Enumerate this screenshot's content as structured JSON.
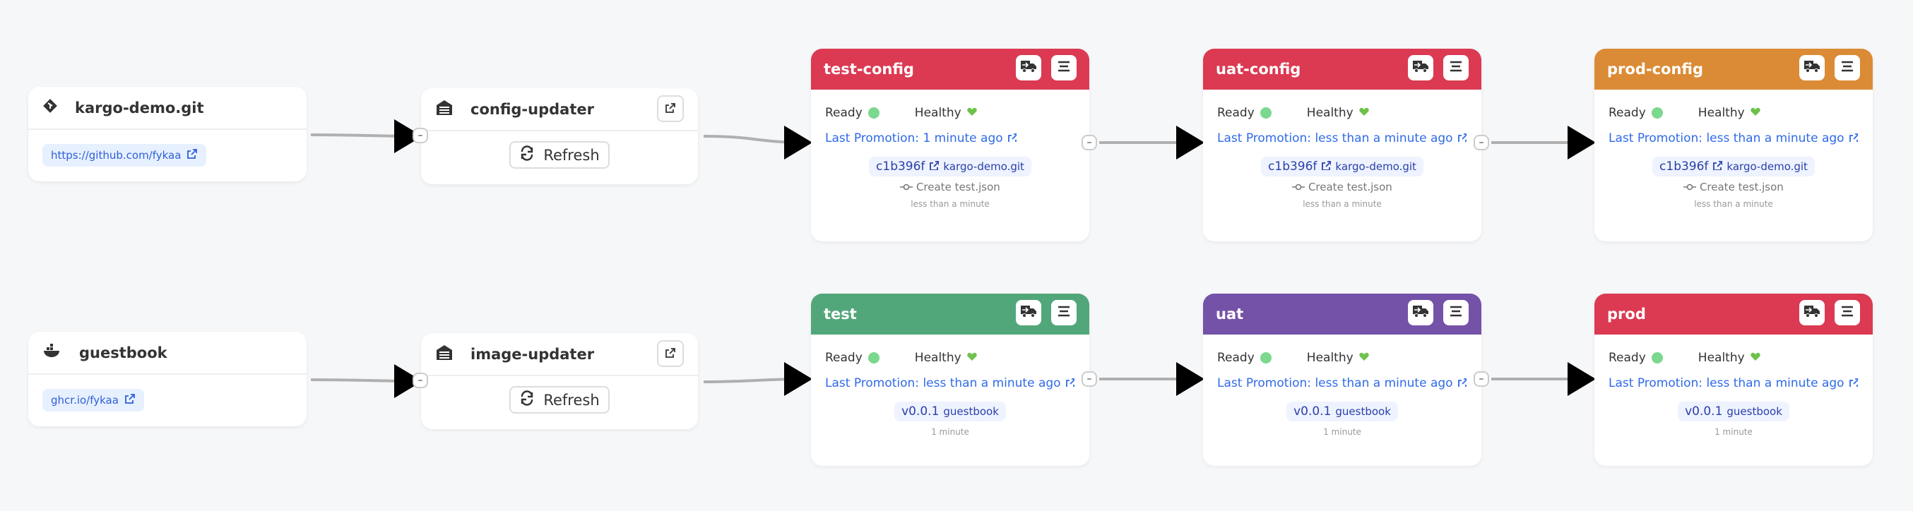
{
  "colors": {
    "red": "#db3a52",
    "green": "#52a77a",
    "purple": "#7452a8",
    "orange": "#db8b35",
    "link": "#2f6ae8",
    "ready": "#7bd88f",
    "healthy": "#6cc24a"
  },
  "sources": [
    {
      "name": "kargo-demo.git",
      "icon": "git-icon",
      "url": "https://github.com/fykaa"
    },
    {
      "name": "guestbook",
      "icon": "docker-icon",
      "url": "ghcr.io/fykaa"
    }
  ],
  "warehouses": [
    {
      "name": "config-updater",
      "refresh_label": "Refresh"
    },
    {
      "name": "image-updater",
      "refresh_label": "Refresh"
    }
  ],
  "stages": [
    {
      "name": "test-config",
      "color": "#db3a52",
      "ready": "Ready",
      "healthy": "Healthy",
      "promotion": "Last Promotion: 1 minute ago",
      "freight": "c1b396f",
      "repo": "kargo-demo.git",
      "message": "Create test.json",
      "time": "less than a minute"
    },
    {
      "name": "uat-config",
      "color": "#db3a52",
      "ready": "Ready",
      "healthy": "Healthy",
      "promotion": "Last Promotion: less than a minute ago",
      "freight": "c1b396f",
      "repo": "kargo-demo.git",
      "message": "Create test.json",
      "time": "less than a minute"
    },
    {
      "name": "prod-config",
      "color": "#db8b35",
      "ready": "Ready",
      "healthy": "Healthy",
      "promotion": "Last Promotion: less than a minute ago",
      "freight": "c1b396f",
      "repo": "kargo-demo.git",
      "message": "Create test.json",
      "time": "less than a minute"
    },
    {
      "name": "test",
      "color": "#52a77a",
      "ready": "Ready",
      "healthy": "Healthy",
      "promotion": "Last Promotion: less than a minute ago",
      "freight": "v0.0.1",
      "repo": "guestbook",
      "time": "1 minute"
    },
    {
      "name": "uat",
      "color": "#7452a8",
      "ready": "Ready",
      "healthy": "Healthy",
      "promotion": "Last Promotion: less than a minute ago",
      "freight": "v0.0.1",
      "repo": "guestbook",
      "time": "1 minute"
    },
    {
      "name": "prod",
      "color": "#db3a52",
      "ready": "Ready",
      "healthy": "Healthy",
      "promotion": "Last Promotion: less than a minute ago",
      "freight": "v0.0.1",
      "repo": "guestbook",
      "time": "1 minute"
    }
  ]
}
